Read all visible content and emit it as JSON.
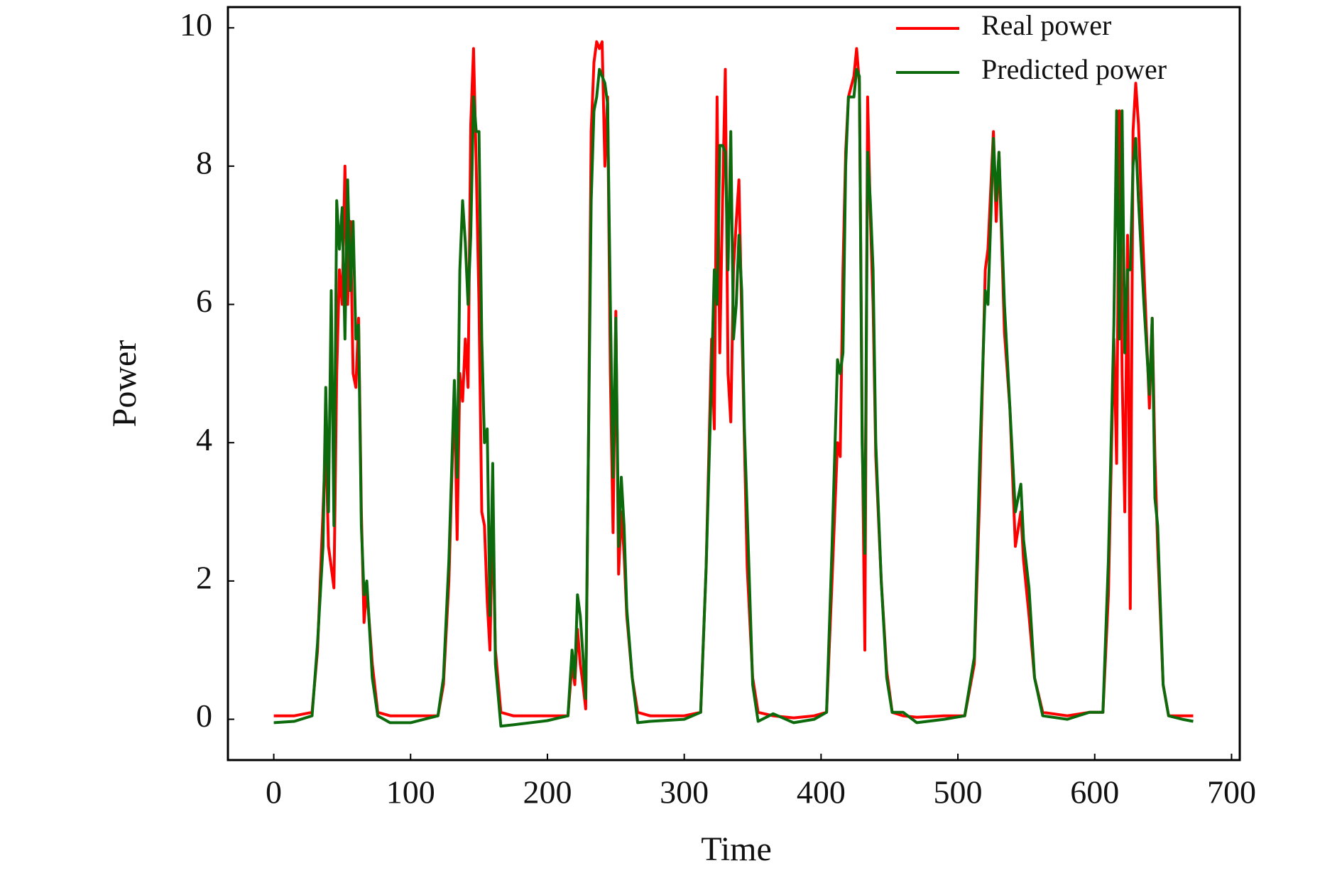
{
  "chart_data": {
    "type": "line",
    "x_label": "Time",
    "y_label": "Power",
    "xlim": [
      -33.5,
      706
    ],
    "ylim": [
      -0.59,
      10.3
    ],
    "xticks": [
      0,
      100,
      200,
      300,
      400,
      500,
      600,
      700
    ],
    "yticks": [
      0,
      2,
      4,
      6,
      8,
      10
    ],
    "grid": false,
    "legend": "upper right",
    "x": [
      0,
      15,
      28,
      32,
      36,
      38,
      40,
      42,
      44,
      46,
      48,
      50,
      52,
      54,
      56,
      58,
      60,
      62,
      64,
      66,
      68,
      72,
      76,
      85,
      100,
      120,
      124,
      128,
      132,
      134,
      136,
      138,
      140,
      142,
      144,
      146,
      148,
      150,
      152,
      154,
      156,
      158,
      160,
      162,
      166,
      175,
      200,
      215,
      218,
      220,
      222,
      224,
      226,
      228,
      230,
      232,
      234,
      236,
      238,
      240,
      242,
      244,
      246,
      248,
      250,
      252,
      254,
      256,
      258,
      262,
      266,
      275,
      300,
      312,
      316,
      320,
      322,
      324,
      326,
      328,
      330,
      332,
      334,
      336,
      338,
      340,
      342,
      344,
      346,
      350,
      354,
      365,
      380,
      395,
      404,
      408,
      412,
      414,
      416,
      418,
      420,
      424,
      426,
      428,
      430,
      432,
      434,
      436,
      438,
      440,
      444,
      448,
      452,
      460,
      470,
      490,
      505,
      512,
      516,
      520,
      522,
      526,
      528,
      530,
      534,
      538,
      542,
      546,
      548,
      552,
      556,
      562,
      580,
      596,
      606,
      610,
      614,
      616,
      618,
      620,
      622,
      624,
      626,
      628,
      630,
      632,
      636,
      640,
      642,
      644,
      646,
      650,
      654,
      664,
      672
    ],
    "series": [
      {
        "name": "Real power",
        "color": "#ff0000",
        "values": [
          0.05,
          0.05,
          0.1,
          1.0,
          3.0,
          4.1,
          2.5,
          2.2,
          1.9,
          5.0,
          6.5,
          6.0,
          8.0,
          6.0,
          7.2,
          5.0,
          4.8,
          5.8,
          3.0,
          1.4,
          1.9,
          0.8,
          0.1,
          0.05,
          0.05,
          0.05,
          0.5,
          2.0,
          4.8,
          2.6,
          5.0,
          4.6,
          5.5,
          4.8,
          8.6,
          9.7,
          8.0,
          6.0,
          3.0,
          2.8,
          1.7,
          1.0,
          3.0,
          1.0,
          0.1,
          0.05,
          0.05,
          0.05,
          0.8,
          0.5,
          1.3,
          0.8,
          0.5,
          0.15,
          4.0,
          8.5,
          9.5,
          9.8,
          9.7,
          9.8,
          8.0,
          9.0,
          5.0,
          2.7,
          5.9,
          2.1,
          3.0,
          2.4,
          1.5,
          0.6,
          0.1,
          0.05,
          0.05,
          0.1,
          2.2,
          5.5,
          4.2,
          9.0,
          5.3,
          7.5,
          9.4,
          5.0,
          4.3,
          6.5,
          7.2,
          7.8,
          5.8,
          4.0,
          2.2,
          0.6,
          0.1,
          0.05,
          0.02,
          0.05,
          0.1,
          2.0,
          4.0,
          3.8,
          6.5,
          8.2,
          9.0,
          9.3,
          9.7,
          9.2,
          4.3,
          1.0,
          9.0,
          7.3,
          6.0,
          3.8,
          2.0,
          0.7,
          0.1,
          0.05,
          0.03,
          0.05,
          0.05,
          0.8,
          3.3,
          6.5,
          6.8,
          8.5,
          7.2,
          8.2,
          5.6,
          4.5,
          2.5,
          3.0,
          2.3,
          1.5,
          0.6,
          0.1,
          0.05,
          0.1,
          0.1,
          1.8,
          5.5,
          3.7,
          8.8,
          5.0,
          3.0,
          7.0,
          1.6,
          8.5,
          9.2,
          8.6,
          6.5,
          4.5,
          5.8,
          3.8,
          2.5,
          0.5,
          0.05,
          0.05,
          0.05
        ]
      },
      {
        "name": "Predicted power",
        "color": "#0c6a0c",
        "values": [
          -0.05,
          -0.03,
          0.05,
          1.1,
          2.5,
          4.8,
          3.0,
          6.2,
          2.8,
          7.5,
          6.8,
          7.4,
          5.5,
          7.8,
          6.2,
          7.2,
          5.5,
          5.7,
          2.8,
          1.8,
          2.0,
          0.6,
          0.05,
          -0.05,
          -0.05,
          0.05,
          0.6,
          2.3,
          4.9,
          3.5,
          6.5,
          7.5,
          6.9,
          6.0,
          7.0,
          9.0,
          8.5,
          8.5,
          5.5,
          4.0,
          4.2,
          1.5,
          3.7,
          0.8,
          -0.1,
          -0.08,
          -0.02,
          0.05,
          1.0,
          0.6,
          1.8,
          1.5,
          0.9,
          0.3,
          4.0,
          7.5,
          8.8,
          9.0,
          9.4,
          9.3,
          9.2,
          8.9,
          6.0,
          3.5,
          5.8,
          2.5,
          3.5,
          2.8,
          1.6,
          0.6,
          -0.05,
          -0.03,
          0,
          0.1,
          2.2,
          5.0,
          6.5,
          6.0,
          8.3,
          8.3,
          8.2,
          6.5,
          8.5,
          5.5,
          6.0,
          7.0,
          6.2,
          4.2,
          3.0,
          0.5,
          -0.03,
          0.08,
          -0.05,
          0,
          0.1,
          2.5,
          5.2,
          5.0,
          5.3,
          8.0,
          9.0,
          9.0,
          9.4,
          9.3,
          4.0,
          2.4,
          8.2,
          7.5,
          6.5,
          4.0,
          2.0,
          0.6,
          0.1,
          0.1,
          -0.05,
          0,
          0.05,
          0.9,
          3.8,
          6.2,
          6.0,
          8.4,
          7.5,
          8.2,
          6.0,
          4.5,
          3.0,
          3.4,
          2.6,
          1.9,
          0.6,
          0.05,
          0,
          0.1,
          0.1,
          2.3,
          5.7,
          8.8,
          5.5,
          8.8,
          5.3,
          6.5,
          6.5,
          8.0,
          8.4,
          7.5,
          6.0,
          4.7,
          5.8,
          3.2,
          2.8,
          0.5,
          0.05,
          0,
          -0.03
        ]
      }
    ]
  }
}
